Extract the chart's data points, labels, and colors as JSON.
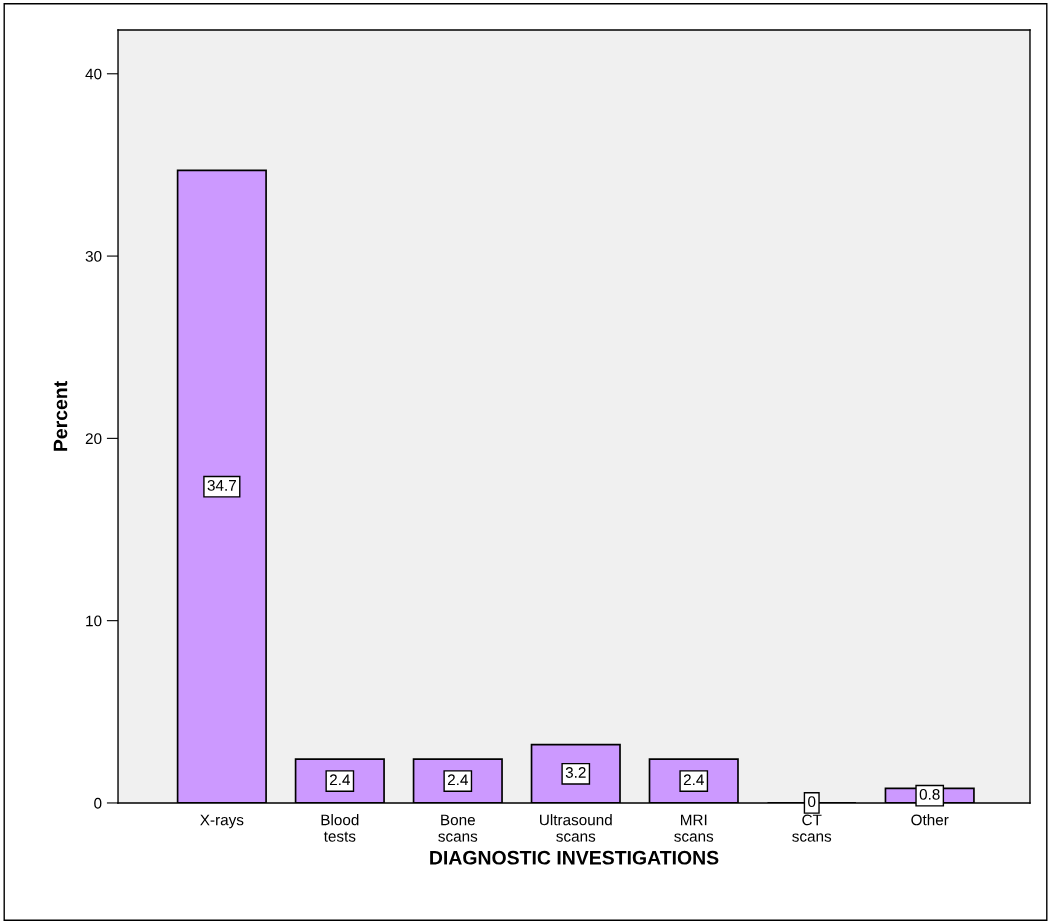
{
  "chart_data": {
    "type": "bar",
    "xlabel": "DIAGNOSTIC INVESTIGATIONS",
    "ylabel": "Percent",
    "categories": [
      "X-rays",
      "Blood\ntests",
      "Bone\nscans",
      "Ultrasound\nscans",
      "MRI\nscans",
      "CT\nscans",
      "Other"
    ],
    "values": [
      34.7,
      2.4,
      2.4,
      3.2,
      2.4,
      0,
      0.8
    ],
    "color": "#cc99ff",
    "ylim": [
      0,
      42.4
    ],
    "yticks": [
      0,
      10,
      20,
      30,
      40
    ],
    "grid": false,
    "data_labels": true
  }
}
